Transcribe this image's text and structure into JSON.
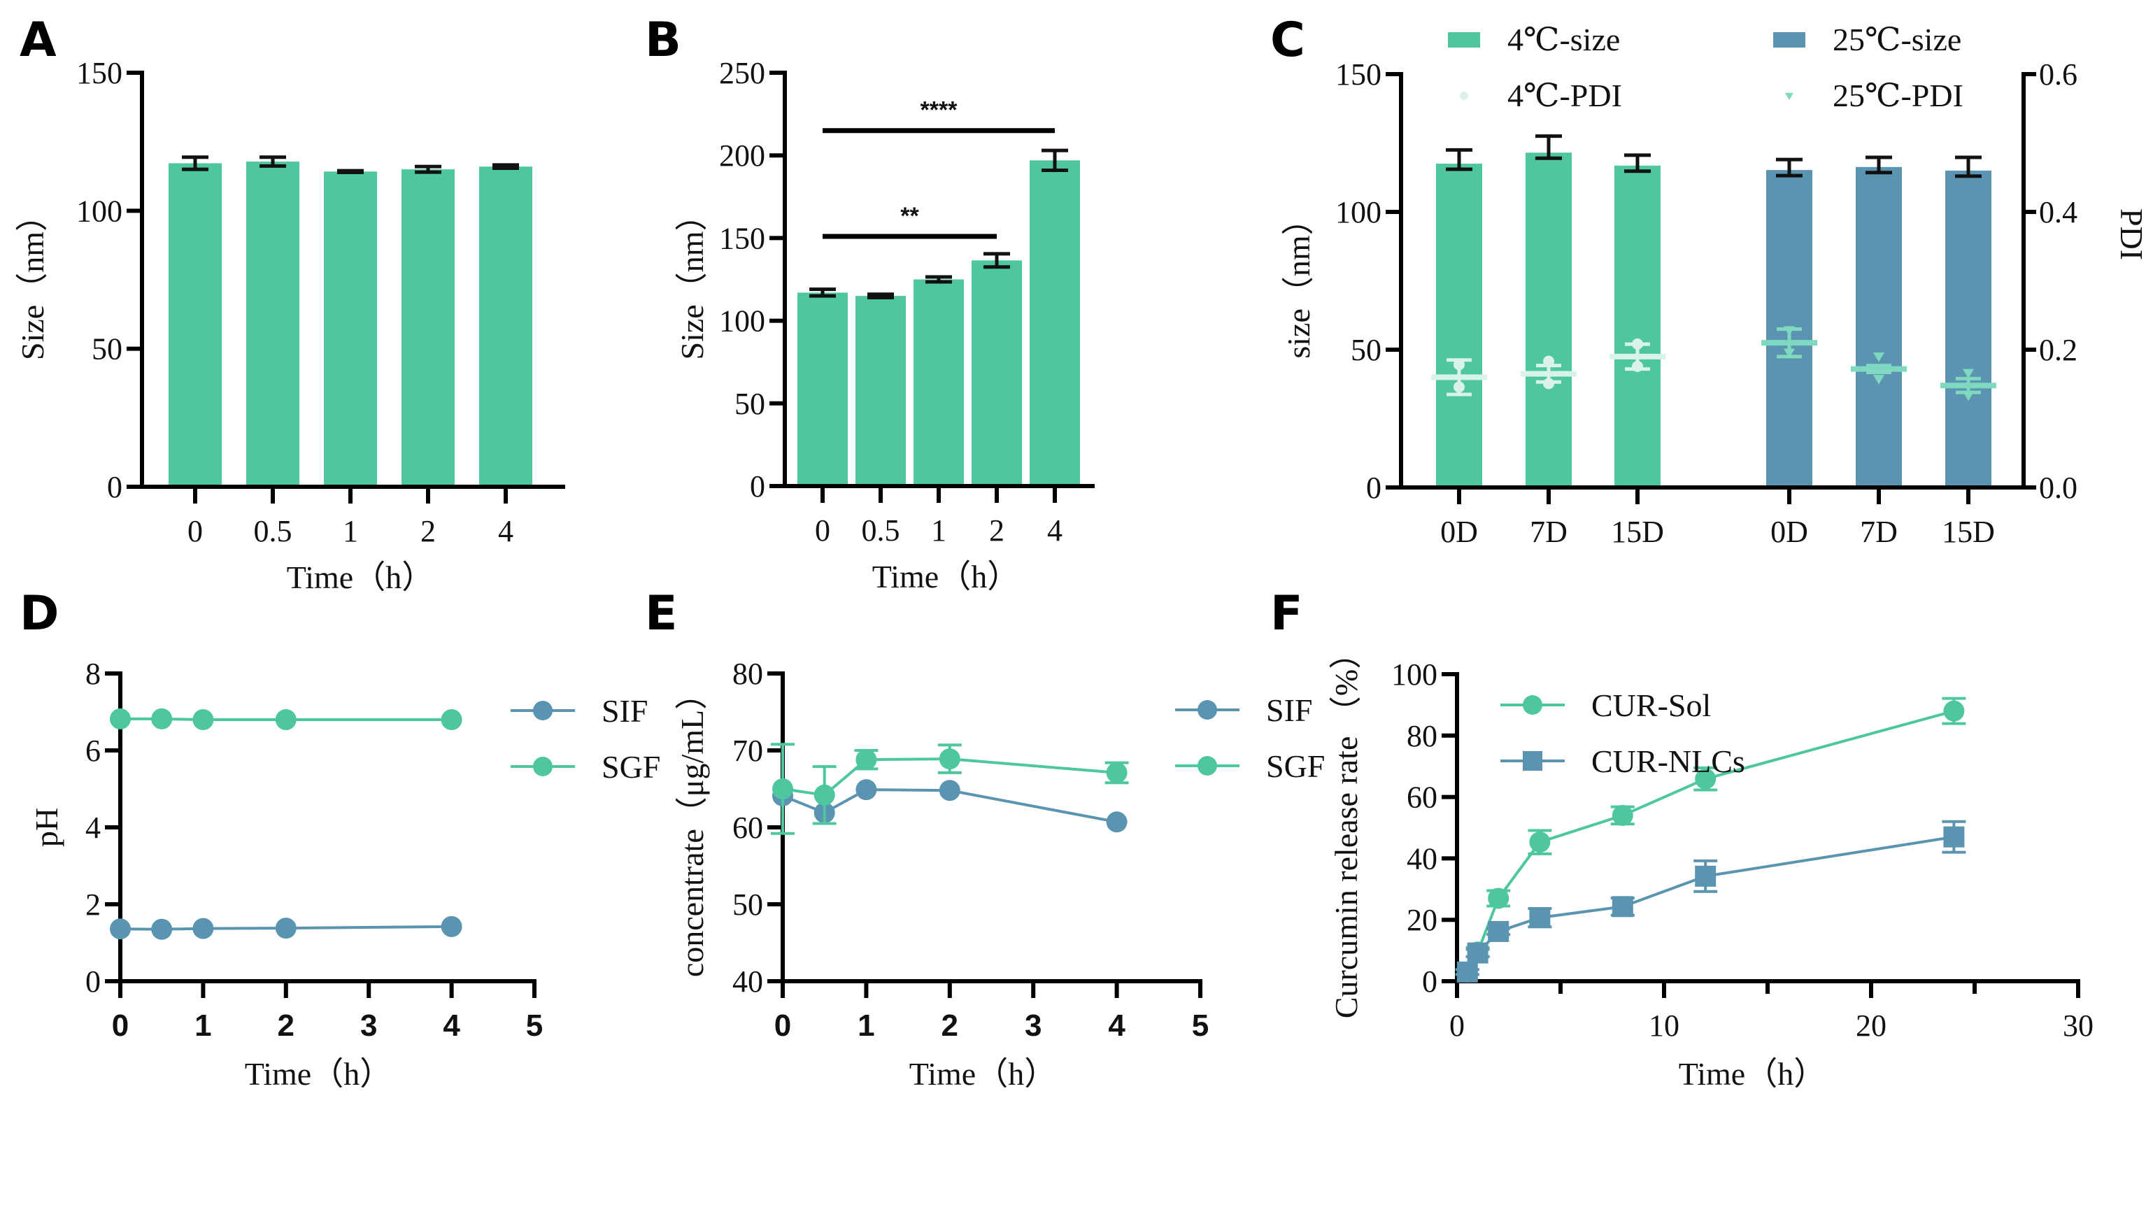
{
  "colors": {
    "green": "#4ec7a1",
    "blue": "#5b94b1",
    "pdi_4c": "#d9f2ea",
    "pdi_25c": "#7fd9c0",
    "axis": "#000000"
  },
  "chart_data": [
    {
      "panel": "A",
      "type": "bar",
      "title": "",
      "xlabel": "Time（h）",
      "ylabel": "Size（nm）",
      "categories": [
        "0",
        "0.5",
        "1",
        "2",
        "4"
      ],
      "values": [
        117.2,
        117.8,
        114.2,
        115.0,
        116.0
      ],
      "errors": [
        2.2,
        1.6,
        0.3,
        1.0,
        0.6
      ],
      "ylim": [
        0,
        150
      ],
      "yticks": [
        0,
        50,
        100,
        150
      ],
      "grid": false
    },
    {
      "panel": "B",
      "type": "bar",
      "title": "",
      "xlabel": "Time（h）",
      "ylabel": "Size（nm）",
      "categories": [
        "0",
        "0.5",
        "1",
        "2",
        "4"
      ],
      "values": [
        117.0,
        115.0,
        125.0,
        136.5,
        197.0
      ],
      "errors": [
        2.0,
        1.0,
        1.5,
        4.0,
        6.0
      ],
      "ylim": [
        0,
        250
      ],
      "yticks": [
        0,
        50,
        100,
        150,
        200,
        250
      ],
      "grid": false,
      "significance": [
        {
          "from": "0",
          "to": "2",
          "label": "**",
          "level": 151
        },
        {
          "from": "0",
          "to": "4",
          "label": "****",
          "level": 215
        }
      ]
    },
    {
      "panel": "C",
      "type": "bar",
      "title": "",
      "xlabel": "",
      "ylabel": "size（nm）",
      "y2label": "PDI",
      "categories": [
        "0D",
        "7D",
        "15D",
        "0D",
        "7D",
        "15D"
      ],
      "ylim": [
        0,
        150
      ],
      "yticks": [
        0,
        50,
        100,
        150
      ],
      "y2lim": [
        0,
        0.6
      ],
      "y2ticks": [
        "0.0",
        "0.2",
        "0.4",
        "0.6"
      ],
      "legend_position": "top",
      "series": [
        {
          "name": "4℃-size",
          "kind": "bar",
          "axis": "left",
          "group": 0,
          "values": [
            117.5,
            121.5,
            116.8
          ],
          "errors": [
            5.0,
            6.0,
            3.8
          ]
        },
        {
          "name": "25℃-size",
          "kind": "bar",
          "axis": "left",
          "group": 1,
          "values": [
            115.2,
            116.3,
            115.0
          ],
          "errors": [
            3.8,
            3.5,
            4.8
          ]
        },
        {
          "name": "4℃-PDI",
          "kind": "point",
          "axis": "right",
          "group": 0,
          "marker": "circle",
          "values": [
            0.16,
            0.165,
            0.19
          ],
          "errors": [
            0.025,
            0.012,
            0.018
          ]
        },
        {
          "name": "25℃-PDI",
          "kind": "point",
          "axis": "right",
          "group": 1,
          "marker": "triangle",
          "values": [
            0.21,
            0.172,
            0.148
          ],
          "errors": [
            0.02,
            0.005,
            0.01
          ]
        }
      ],
      "grid": false
    },
    {
      "panel": "D",
      "type": "line",
      "title": "",
      "xlabel": "Time（h）",
      "ylabel": "pH",
      "x": [
        0,
        0.5,
        1,
        2,
        4
      ],
      "xlim": [
        0,
        5
      ],
      "xticks": [
        0,
        1,
        2,
        3,
        4,
        5
      ],
      "ylim": [
        0,
        8
      ],
      "yticks": [
        0,
        2,
        4,
        6,
        8
      ],
      "legend_position": "right",
      "series": [
        {
          "name": "SIF",
          "color_key": "blue",
          "marker": "circle",
          "values": [
            1.36,
            1.35,
            1.37,
            1.38,
            1.42
          ]
        },
        {
          "name": "SGF",
          "color_key": "green",
          "marker": "circle",
          "values": [
            6.82,
            6.82,
            6.8,
            6.8,
            6.8
          ]
        }
      ],
      "grid": false
    },
    {
      "panel": "E",
      "type": "line",
      "title": "",
      "xlabel": "Time（h）",
      "ylabel": "concentrate（μg/mL）",
      "x": [
        0,
        0.5,
        1,
        2,
        4
      ],
      "xlim": [
        0,
        5
      ],
      "xticks": [
        0,
        1,
        2,
        3,
        4,
        5
      ],
      "ylim": [
        40,
        80
      ],
      "yticks": [
        40,
        50,
        60,
        70,
        80
      ],
      "legend_position": "right",
      "series": [
        {
          "name": "SIF",
          "color_key": "blue",
          "marker": "circle",
          "values": [
            64.1,
            61.9,
            64.9,
            64.8,
            60.7
          ],
          "errors": [
            0,
            0,
            0,
            0,
            0
          ]
        },
        {
          "name": "SGF",
          "color_key": "green",
          "marker": "circle",
          "values": [
            65.0,
            64.2,
            68.8,
            68.9,
            67.1
          ],
          "errors": [
            5.8,
            3.7,
            1.2,
            1.8,
            1.3
          ]
        }
      ],
      "grid": false
    },
    {
      "panel": "F",
      "type": "line",
      "title": "",
      "xlabel": "Time（h）",
      "ylabel": "Curcumin release rate （%）",
      "x": [
        0.5,
        1,
        2,
        4,
        8,
        12,
        24
      ],
      "xlim": [
        0,
        30
      ],
      "xticks": [
        0,
        10,
        20,
        30
      ],
      "xminor": [
        5,
        15,
        25
      ],
      "ylim": [
        0,
        100
      ],
      "yticks": [
        0,
        20,
        40,
        60,
        80,
        100
      ],
      "legend_position": "top-left",
      "series": [
        {
          "name": "CUR-Sol",
          "color_key": "green",
          "marker": "circle",
          "values": [
            3.0,
            9.5,
            27.0,
            45.3,
            54.0,
            65.9,
            88.0
          ],
          "errors": [
            0.8,
            1.5,
            2.5,
            3.8,
            2.8,
            3.6,
            4.1
          ]
        },
        {
          "name": "CUR-NLCs",
          "color_key": "blue",
          "marker": "square",
          "values": [
            3.0,
            9.2,
            16.2,
            20.7,
            24.3,
            34.2,
            47.0
          ],
          "errors": [
            0.8,
            1.2,
            1.0,
            3.0,
            2.8,
            5.0,
            5.0
          ]
        }
      ],
      "grid": false
    }
  ]
}
